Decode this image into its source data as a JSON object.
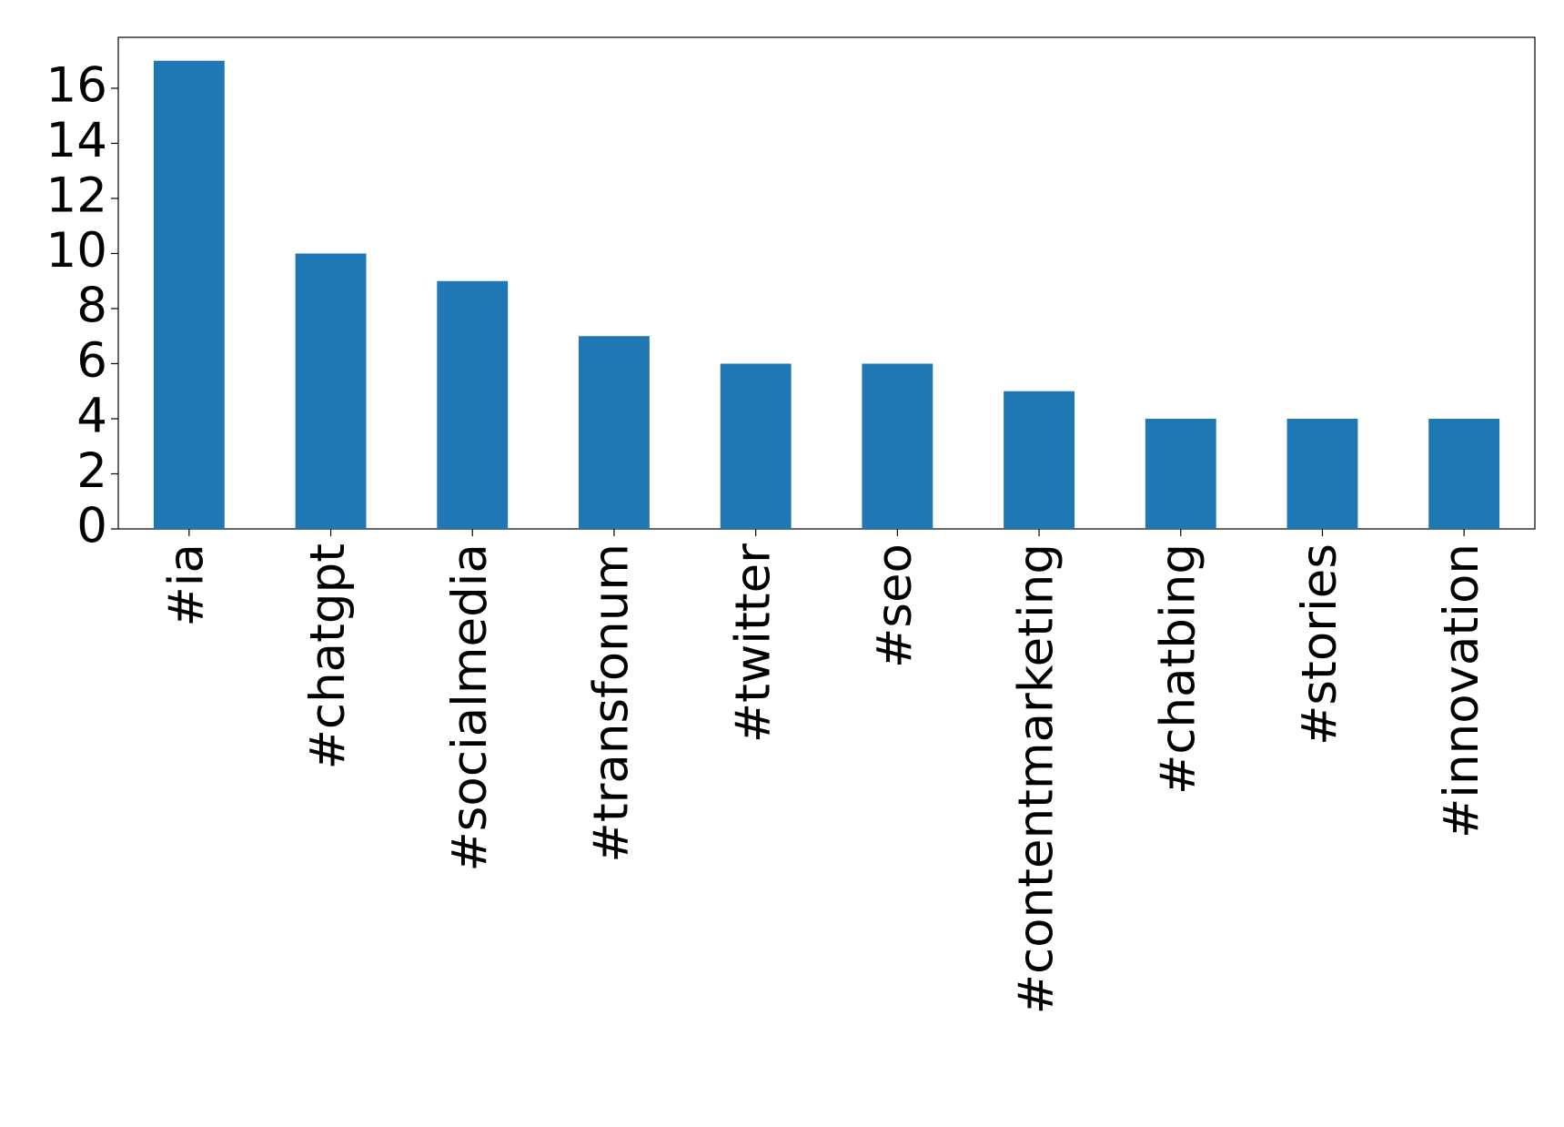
{
  "chart_data": {
    "type": "bar",
    "categories": [
      "#ia",
      "#chatgpt",
      "#socialmedia",
      "#transfonum",
      "#twitter",
      "#seo",
      "#contentmarketing",
      "#chatbing",
      "#stories",
      "#innovation"
    ],
    "values": [
      17,
      10,
      9,
      7,
      6,
      6,
      5,
      4,
      4,
      4
    ],
    "color": "#1f77b4",
    "ylim": [
      0,
      17.85
    ],
    "yticks": [
      0,
      2,
      4,
      6,
      8,
      10,
      12,
      14,
      16
    ],
    "grid": false
  }
}
